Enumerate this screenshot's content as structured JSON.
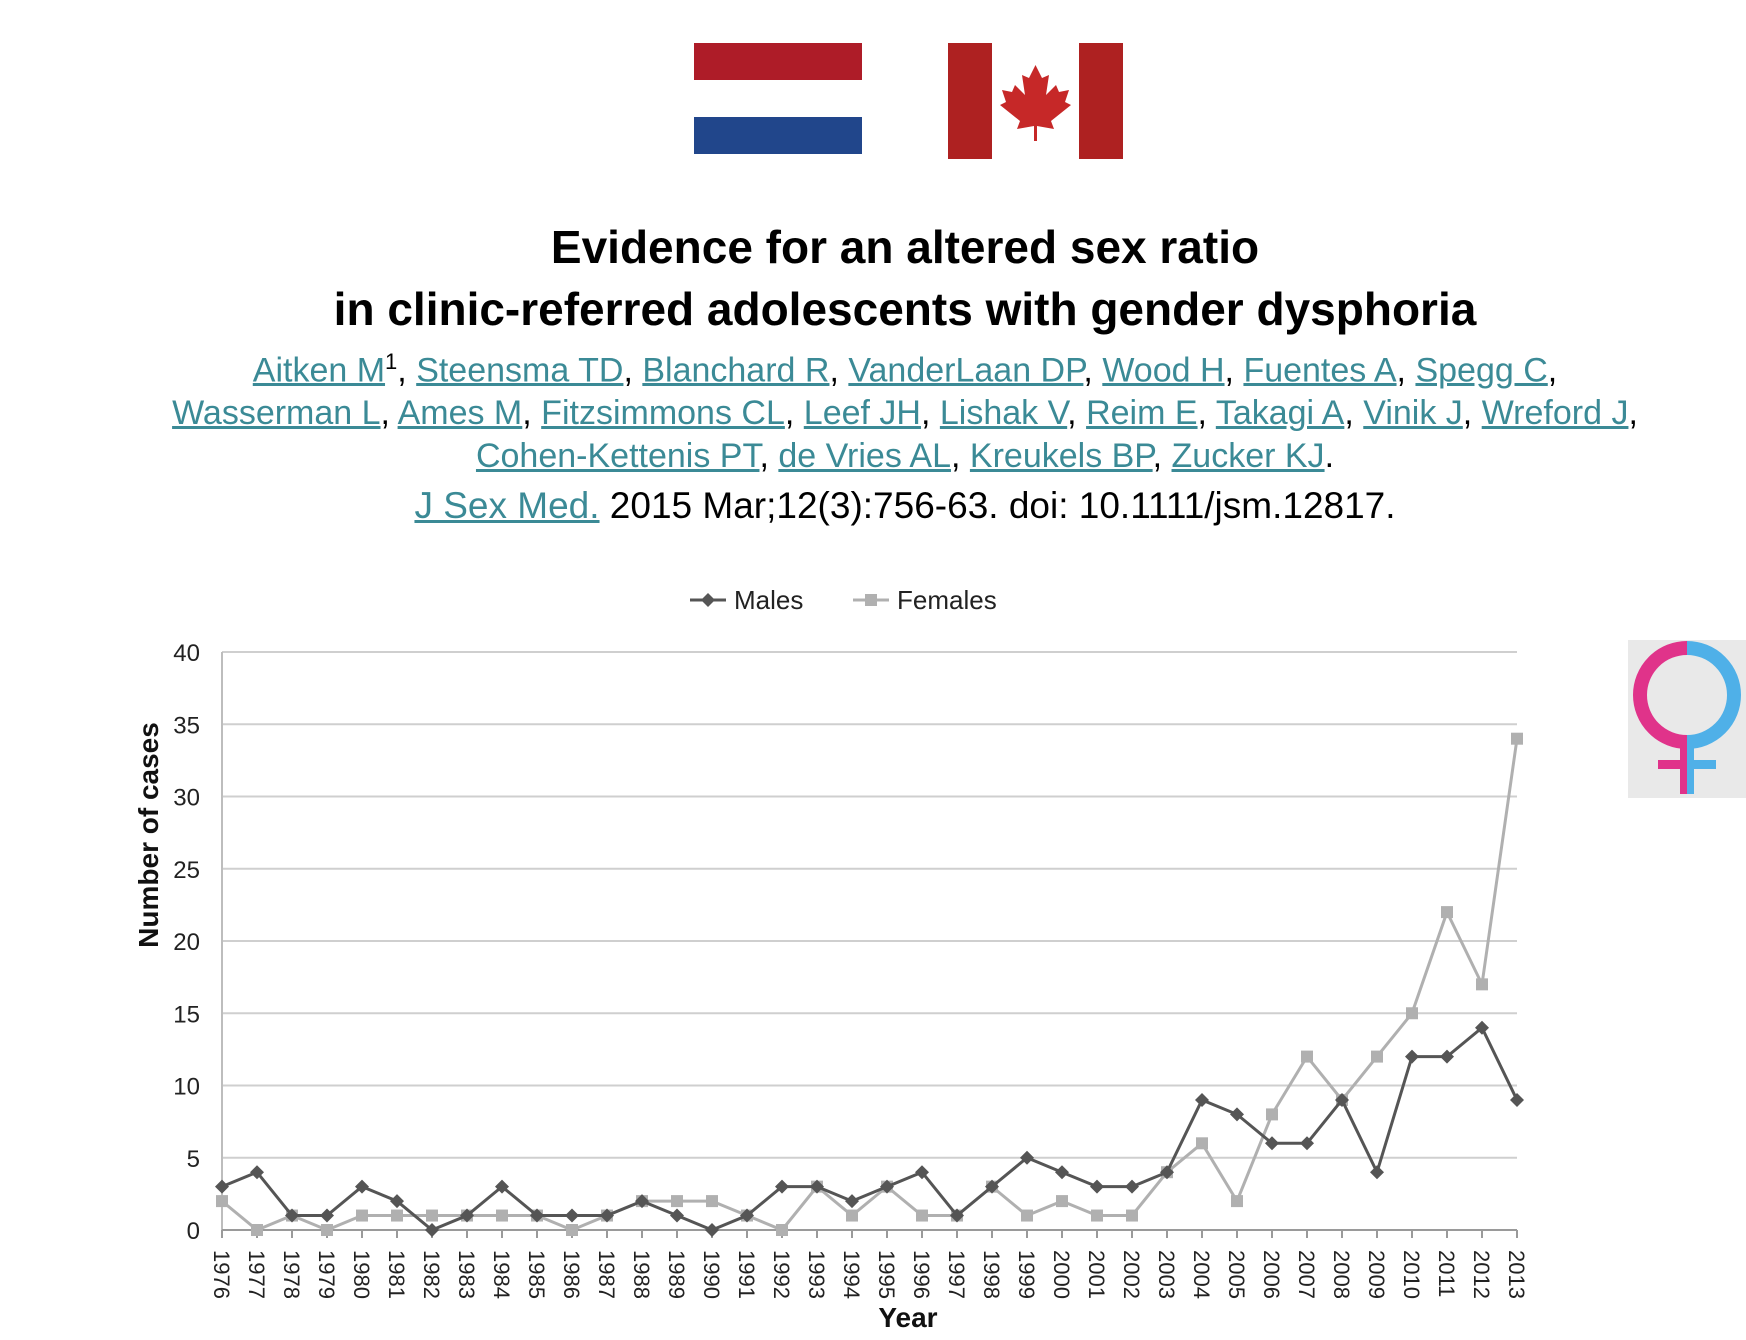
{
  "header": {
    "flags": [
      "netherlands-flag",
      "canada-flag"
    ],
    "title_line1": "Evidence for an altered sex ratio",
    "title_line2": "in clinic-referred adolescents with gender dysphoria"
  },
  "authors": {
    "line1": [
      "Aitken M",
      "Steensma TD",
      "Blanchard R",
      "VanderLaan DP",
      "Wood H",
      "Fuentes A",
      "Spegg C"
    ],
    "line2": [
      "Wasserman L",
      "Ames M",
      "Fitzsimmons CL",
      "Leef JH",
      "Lishak V",
      "Reim E",
      "Takagi A",
      "Vinik J",
      "Wreford J"
    ],
    "line3": [
      "Cohen-Kettenis PT",
      "de Vries AL",
      "Kreukels BP",
      "Zucker KJ"
    ],
    "first_author_superscript": "1"
  },
  "citation": {
    "journal": "J Sex Med.",
    "details": " 2015 Mar;12(3):756-63. doi: 10.1111/jsm.12817."
  },
  "colors": {
    "link": "#3b8a96",
    "males": "#555555",
    "females": "#b0b0b0",
    "flag_red": "#ae1c28",
    "flag_blue": "#21468b",
    "canada_red": "#d52b1e",
    "gender_pink": "#e0338a",
    "gender_blue": "#4fb0e8"
  },
  "icons": {
    "gender_symbol": "female-symbol-pink-blue"
  },
  "chart_data": {
    "type": "line",
    "xlabel": "Year",
    "ylabel": "Number of cases",
    "ylim": [
      0,
      40
    ],
    "yticks": [
      0,
      5,
      10,
      15,
      20,
      25,
      30,
      35,
      40
    ],
    "grid": true,
    "legend_position": "top",
    "categories": [
      "1976",
      "1977",
      "1978",
      "1979",
      "1980",
      "1981",
      "1982",
      "1983",
      "1984",
      "1985",
      "1986",
      "1987",
      "1988",
      "1989",
      "1990",
      "1991",
      "1992",
      "1993",
      "1994",
      "1995",
      "1996",
      "1997",
      "1998",
      "1999",
      "2000",
      "2001",
      "2002",
      "2003",
      "2004",
      "2005",
      "2006",
      "2007",
      "2008",
      "2009",
      "2010",
      "2011",
      "2012",
      "2013"
    ],
    "series": [
      {
        "name": "Males",
        "marker": "diamond",
        "values": [
          3,
          4,
          1,
          1,
          3,
          2,
          0,
          1,
          3,
          1,
          1,
          1,
          2,
          1,
          0,
          1,
          3,
          3,
          2,
          3,
          4,
          1,
          3,
          5,
          4,
          3,
          3,
          4,
          9,
          8,
          6,
          6,
          9,
          4,
          12,
          12,
          14,
          9
        ]
      },
      {
        "name": "Females",
        "marker": "square",
        "values": [
          2,
          0,
          1,
          0,
          1,
          1,
          1,
          1,
          1,
          1,
          0,
          1,
          2,
          2,
          2,
          1,
          0,
          3,
          1,
          3,
          1,
          1,
          3,
          1,
          2,
          1,
          1,
          4,
          6,
          2,
          8,
          12,
          9,
          12,
          15,
          22,
          17,
          34
        ]
      }
    ]
  }
}
